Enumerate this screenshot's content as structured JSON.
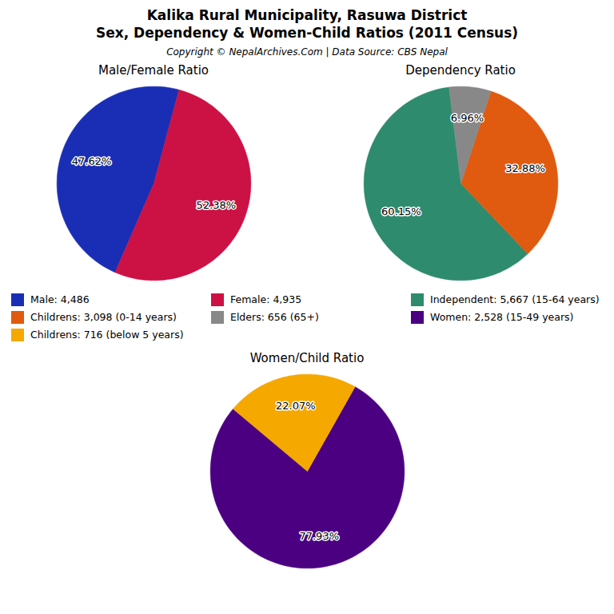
{
  "title": "Kalika Rural Municipality, Rasuwa District",
  "subtitle": "Sex, Dependency & Women-Child Ratios (2011 Census)",
  "annotations": [
    "Copyright © NepalArchives.Com | Data Source: CBS Nepal"
  ],
  "chart_data": [
    {
      "type": "pie",
      "title": "Male/Female Ratio",
      "categories": [
        "Male: 4,486",
        "Female: 4,935"
      ],
      "values": [
        47.62,
        52.38
      ],
      "value_labels": [
        "47.62%",
        "52.38%"
      ],
      "colors": [
        "#1a2eb5",
        "#cc1144"
      ],
      "data_labels": true
    },
    {
      "type": "pie",
      "title": "Dependency Ratio",
      "categories": [
        "Independent: 5,667 (15-64 years)",
        "Childrens: 3,098 (0-14 years)",
        "Elders: 656 (65+)"
      ],
      "values": [
        60.15,
        32.88,
        6.96
      ],
      "value_labels": [
        "60.15%",
        "32.88%",
        "6.96%"
      ],
      "colors": [
        "#2e8b6e",
        "#e05a10",
        "#888888"
      ],
      "data_labels": true
    },
    {
      "type": "pie",
      "title": "Women/Child Ratio",
      "categories": [
        "Women: 2,528 (15-49 years)",
        "Childrens: 716 (below 5 years)"
      ],
      "values": [
        77.93,
        22.07
      ],
      "value_labels": [
        "77.93%",
        "22.07%"
      ],
      "colors": [
        "#4b0082",
        "#f5a800"
      ],
      "data_labels": true
    }
  ]
}
